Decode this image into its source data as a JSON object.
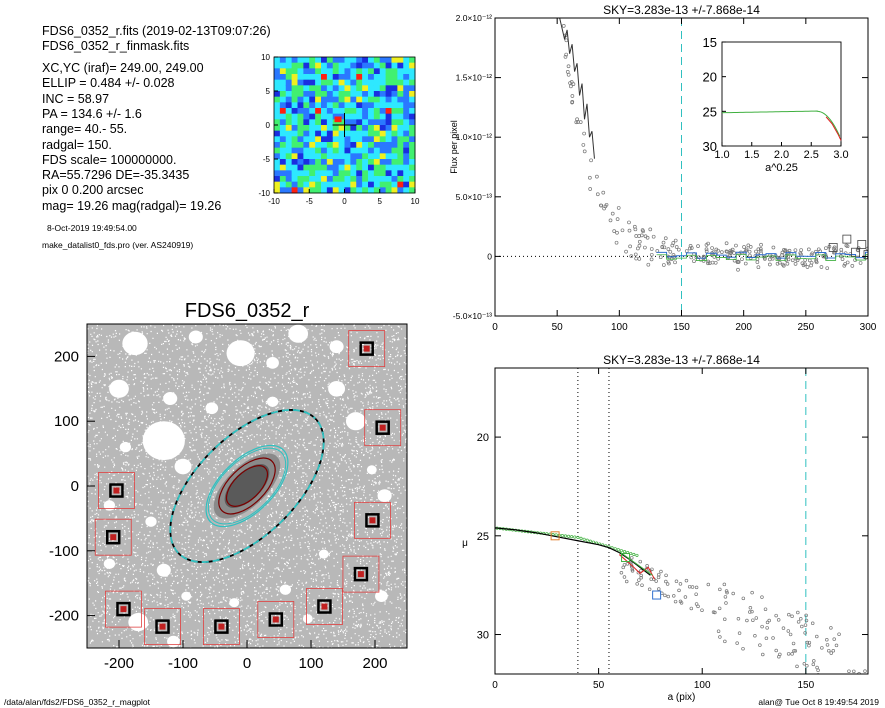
{
  "header": {
    "file_line": "FDS6_0352_r.fits  (2019-02-13T09:07:26)",
    "mask_line": "FDS6_0352_r_finmask.fits",
    "info_lines": [
      "XC,YC (iraf)=   249.00, 249.00",
      "ELLIP = 0.484 +/- 0.028",
      "INC   = 58.97",
      "PA    = 134.6 +/-   1.6",
      "range=   40.-   55.",
      "radgal=  150.",
      "FDS scale=  100000000.",
      "RA=55.7296   DE=-35.3435",
      "pix 0 0.200 arcsec",
      "mag=  19.26  mag(radgal)=  19.26"
    ],
    "date_line": "8-Oct-2019 19:49:54.00",
    "program_line": "make_datalist0_fds.pro (ver. AS240919)"
  },
  "footer": {
    "path": "/data/alan/fds2/FDS6_0352_r_magplot",
    "user_stamp": "alan@  Tue Oct  8 19:49:54 2019"
  },
  "colors": {
    "dark_red": "#7a0000",
    "red": "#e02020",
    "cyan": "#30c0c0",
    "green": "#40b040",
    "blue": "#3070d0",
    "orange": "#e08030",
    "gray": "#888888"
  },
  "chart_data": [
    {
      "id": "residual-map",
      "type": "heatmap",
      "xlim": [
        -10,
        10
      ],
      "ylim": [
        -10,
        10
      ],
      "xticks": [
        "-10",
        "-5",
        "0",
        "5",
        "10"
      ],
      "yticks": [
        "-10",
        "-5",
        "0",
        "5",
        "10"
      ],
      "colormap": [
        "#1a2ee0",
        "#2a78ff",
        "#2ee8ff",
        "#41f070",
        "#f0f020",
        "#ff2010"
      ]
    },
    {
      "id": "galaxy-image",
      "type": "scatter",
      "title": "FDS6_0352_r",
      "xlim": [
        -250,
        250
      ],
      "ylim": [
        -250,
        250
      ],
      "xticks": [
        "-200",
        "-100",
        "0",
        "100",
        "200"
      ],
      "yticks": [
        "-200",
        "-100",
        "0",
        "100",
        "200"
      ],
      "ellipses": [
        {
          "a": 150,
          "ellip": 0.484,
          "pa": 134.6,
          "color": "dashed"
        },
        {
          "a": 80,
          "ellip": 0.484,
          "pa": 134.6,
          "color": "cyan"
        },
        {
          "a": 55,
          "ellip": 0.484,
          "pa": 134.6,
          "color": "dark_red"
        },
        {
          "a": 40,
          "ellip": 0.484,
          "pa": 134.6,
          "color": "dark_red"
        }
      ],
      "reference_boxes": [
        [
          187,
          212
        ],
        [
          212,
          90
        ],
        [
          -204,
          -7
        ],
        [
          -209,
          -79
        ],
        [
          196,
          -53
        ],
        [
          178,
          -136
        ],
        [
          121,
          -186
        ],
        [
          45,
          -206
        ],
        [
          -193,
          -190
        ],
        [
          -132,
          -217
        ],
        [
          -40,
          -217
        ]
      ]
    },
    {
      "id": "flux-profile",
      "type": "scatter",
      "title": "SKY=3.283e-13 +/-7.868e-14",
      "xlabel": "",
      "ylabel": "Flux per pixel",
      "xlim": [
        0,
        300
      ],
      "ylim": [
        -5e-13,
        2e-12
      ],
      "xticks": [
        "0",
        "50",
        "100",
        "150",
        "200",
        "250",
        "300"
      ],
      "yticks": [
        {
          "value": -5e-13,
          "label": "-5.0×10⁻¹³"
        },
        {
          "value": 0,
          "label": "0"
        },
        {
          "value": 5e-13,
          "label": "5.0×10⁻¹³"
        },
        {
          "value": 1e-12,
          "label": "1.0×10⁻¹²"
        },
        {
          "value": 1.5e-12,
          "label": "1.5×10⁻¹²"
        },
        {
          "value": 2e-12,
          "label": "2.0×10⁻¹²"
        }
      ],
      "radgal_line": 150,
      "profile_line": [
        [
          52,
          2e-12
        ],
        [
          56,
          1.82e-12
        ],
        [
          58,
          1.9e-12
        ],
        [
          60,
          1.7e-12
        ],
        [
          62,
          1.78e-12
        ],
        [
          64,
          1.55e-12
        ],
        [
          66,
          1.62e-12
        ],
        [
          68,
          1.35e-12
        ],
        [
          70,
          1.45e-12
        ],
        [
          72,
          1.15e-12
        ],
        [
          74,
          1.28e-12
        ],
        [
          76,
          1e-12
        ],
        [
          78,
          1.05e-12
        ],
        [
          80,
          8.2e-13
        ]
      ],
      "inset": {
        "xlabel": "a^0.25",
        "xlim": [
          1.0,
          3.0
        ],
        "ylim": [
          30,
          15
        ],
        "xticks": [
          "1.0",
          "1.5",
          "2.0",
          "2.5",
          "3.0"
        ],
        "yticks": [
          "15",
          "20",
          "25",
          "30"
        ]
      }
    },
    {
      "id": "surface-brightness",
      "type": "scatter",
      "title": "SKY=3.283e-13 +/-7.868e-14",
      "xlabel": "a (pix)",
      "ylabel": "μ",
      "xlim": [
        0,
        180
      ],
      "ylim": [
        32,
        16.5
      ],
      "xticks": [
        "0",
        "50",
        "100",
        "150"
      ],
      "yticks": [
        "20",
        "25",
        "30"
      ],
      "range_lines": [
        40,
        55
      ],
      "radgal_line": 150,
      "profile": [
        [
          0,
          24.6
        ],
        [
          10,
          24.7
        ],
        [
          20,
          24.85
        ],
        [
          30,
          25.05
        ],
        [
          40,
          25.25
        ],
        [
          50,
          25.45
        ],
        [
          55,
          25.6
        ],
        [
          60,
          25.85
        ],
        [
          65,
          26.2
        ],
        [
          70,
          26.6
        ],
        [
          75,
          27.0
        ]
      ],
      "orange_box": [
        29,
        25.0
      ],
      "green_box": [
        63,
        26.1
      ],
      "blue_box": [
        78,
        28.0
      ]
    }
  ]
}
